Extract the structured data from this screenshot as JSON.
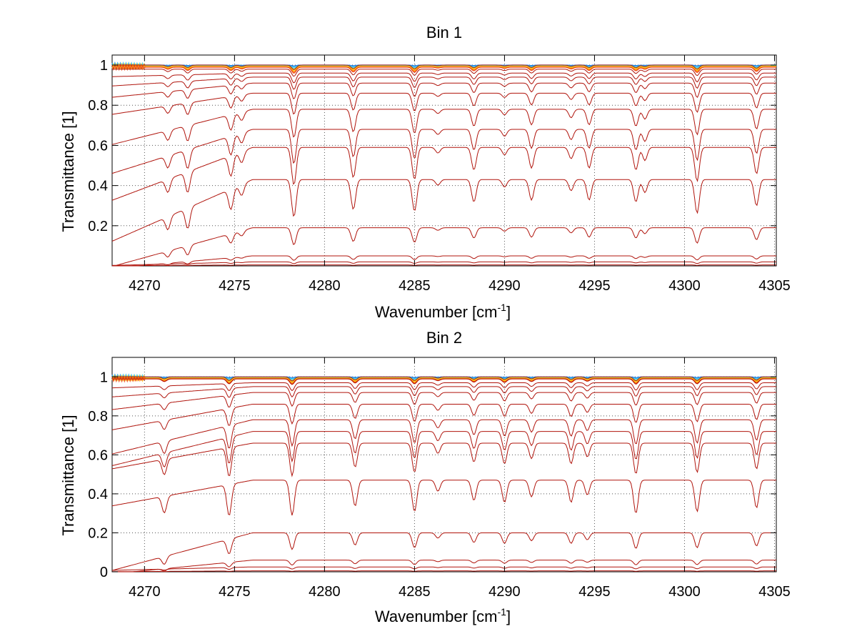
{
  "chart_data": [
    {
      "type": "line",
      "title": "Bin 1",
      "xlabel": "Wavenumber [cm",
      "xlabel_sup": "-1",
      "xlabel_close": "]",
      "ylabel": "Transmittance [1]",
      "xlim": [
        4268.2,
        4305.1
      ],
      "ylim": [
        0.0,
        1.05
      ],
      "xticks": [
        4270,
        4275,
        4280,
        4285,
        4290,
        4295,
        4300,
        4305
      ],
      "yticks": [
        0.2,
        0.4,
        0.6,
        0.8,
        1
      ],
      "grid": true,
      "series_description": "Family of transmittance spectra with increasing absorber amount; top curves near 1 colored blue-cyan-yellow-orange, lower curves dark red",
      "line_centers": [
        {
          "x": 4271.3,
          "depth": 0.35
        },
        {
          "x": 4272.4,
          "depth": 0.55
        },
        {
          "x": 4274.8,
          "depth": 0.55
        },
        {
          "x": 4275.4,
          "depth": 0.3
        },
        {
          "x": 4278.3,
          "depth": 1.0
        },
        {
          "x": 4281.6,
          "depth": 0.8
        },
        {
          "x": 4285.0,
          "depth": 0.85
        },
        {
          "x": 4286.3,
          "depth": 0.15
        },
        {
          "x": 4288.3,
          "depth": 0.6
        },
        {
          "x": 4290.0,
          "depth": 0.2
        },
        {
          "x": 4291.5,
          "depth": 0.55
        },
        {
          "x": 4293.7,
          "depth": 0.3
        },
        {
          "x": 4294.7,
          "depth": 0.55
        },
        {
          "x": 4297.3,
          "depth": 0.6
        },
        {
          "x": 4297.8,
          "depth": 0.35
        },
        {
          "x": 4300.7,
          "depth": 0.9
        },
        {
          "x": 4304.0,
          "depth": 0.7
        }
      ],
      "baselines": [
        1.0,
        0.98,
        0.96,
        0.94,
        0.91,
        0.86,
        0.78,
        0.68,
        0.59,
        0.43,
        0.19,
        0.05,
        0.02,
        0.005
      ],
      "left_drop": [
        0.0,
        0.0,
        0.02,
        0.05,
        0.08,
        0.12,
        0.2,
        0.25,
        0.3,
        0.35,
        0.22,
        0.07,
        0.02,
        0.005
      ]
    },
    {
      "type": "line",
      "title": "Bin 2",
      "xlabel": "Wavenumber [cm",
      "xlabel_sup": "-1",
      "xlabel_close": "]",
      "ylabel": "Transmittance [1]",
      "xlim": [
        4268.2,
        4305.1
      ],
      "ylim": [
        0.0,
        1.1
      ],
      "xticks": [
        4270,
        4275,
        4280,
        4285,
        4290,
        4295,
        4300,
        4305
      ],
      "yticks": [
        0,
        0.2,
        0.4,
        0.6,
        0.8,
        1
      ],
      "grid": true,
      "series_description": "Family of transmittance spectra with increasing absorber amount; top curves near 1 colored blue-cyan-yellow-orange, lower curves dark red",
      "line_centers": [
        {
          "x": 4271.1,
          "depth": 0.45
        },
        {
          "x": 4274.7,
          "depth": 0.85
        },
        {
          "x": 4278.2,
          "depth": 0.95
        },
        {
          "x": 4281.7,
          "depth": 0.7
        },
        {
          "x": 4285.0,
          "depth": 0.85
        },
        {
          "x": 4286.3,
          "depth": 0.3
        },
        {
          "x": 4288.3,
          "depth": 0.55
        },
        {
          "x": 4290.0,
          "depth": 0.6
        },
        {
          "x": 4291.5,
          "depth": 0.45
        },
        {
          "x": 4293.7,
          "depth": 0.6
        },
        {
          "x": 4294.6,
          "depth": 0.4
        },
        {
          "x": 4297.3,
          "depth": 0.9
        },
        {
          "x": 4300.7,
          "depth": 0.85
        },
        {
          "x": 4304.0,
          "depth": 0.75
        }
      ],
      "baselines": [
        1.0,
        0.99,
        0.97,
        0.95,
        0.92,
        0.86,
        0.78,
        0.72,
        0.66,
        0.47,
        0.2,
        0.06,
        0.025,
        0.005
      ],
      "left_drop": [
        0.0,
        0.0,
        0.03,
        0.06,
        0.1,
        0.15,
        0.2,
        0.2,
        0.15,
        0.15,
        0.22,
        0.08,
        0.02,
        0.005
      ]
    }
  ],
  "colors": {
    "upper_family": [
      "#1f77e0",
      "#29b6f6",
      "#4dd0e1",
      "#a5d86b",
      "#e6e03a",
      "#ffb300",
      "#ff7a1a",
      "#f04a1a"
    ],
    "lower_family": "#b0140c",
    "grid": "#555555"
  }
}
